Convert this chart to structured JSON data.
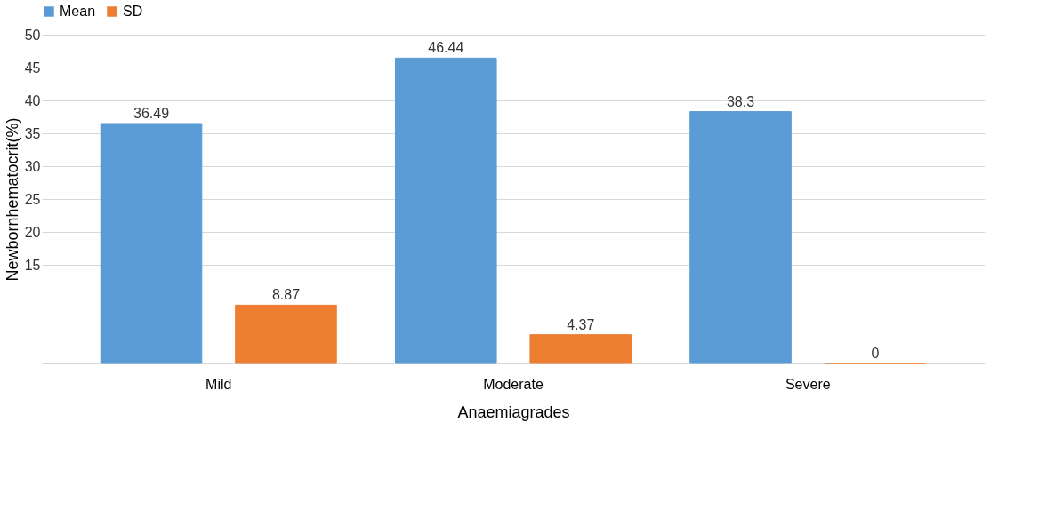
{
  "chart_data": {
    "type": "bar",
    "xlabel": "Anaemiagrades",
    "ylabel": "Newbornhematocrit(%)",
    "categories": [
      "Mild",
      "Moderate",
      "Severe"
    ],
    "series": [
      {
        "name": "Mean",
        "color": "#5b9bd5",
        "values": [
          36.49,
          46.44,
          38.3
        ],
        "value_labels": [
          "36.49",
          "46.44",
          "38.3"
        ]
      },
      {
        "name": "SD",
        "color": "#ed7d31",
        "values": [
          8.87,
          4.37,
          0
        ],
        "value_labels": [
          "8.87",
          "4.37",
          "0"
        ]
      }
    ],
    "ylim": [
      0,
      50
    ],
    "yticks": [
      15,
      20,
      25,
      30,
      35,
      40,
      45,
      50
    ],
    "grid": "y",
    "legend": "top"
  }
}
